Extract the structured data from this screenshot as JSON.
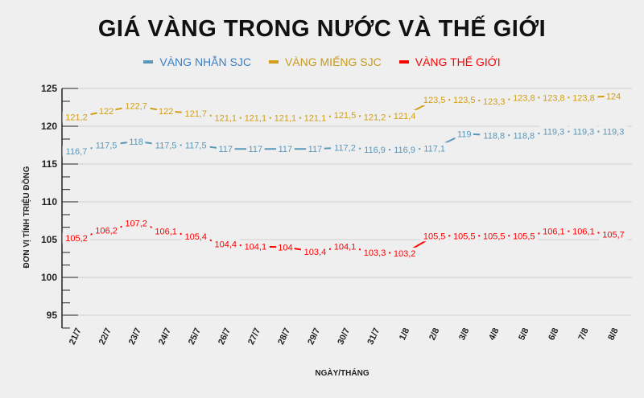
{
  "chart_data": {
    "type": "line",
    "title": "GIÁ VÀNG TRONG NƯỚC VÀ THẾ GIỚI",
    "xlabel": "NGÀY/THÁNG",
    "ylabel": "ĐƠN VỊ TÍNH TRIỆU ĐỒNG",
    "ylim": [
      93.3,
      125
    ],
    "yticks": [
      95,
      100,
      105,
      110,
      115,
      120,
      125
    ],
    "grid": true,
    "legend_position": "top",
    "categories": [
      "21/7",
      "22/7",
      "23/7",
      "24/7",
      "25/7",
      "26/7",
      "27/7",
      "28/7",
      "29/7",
      "30/7",
      "31/7",
      "1/8",
      "2/8",
      "3/8",
      "4/8",
      "5/8",
      "6/8",
      "7/8",
      "8/8"
    ],
    "series": [
      {
        "name": "VÀNG NHẪN SJC",
        "color": "#5b97b8",
        "legend_text_color": "#3b80c6",
        "values": [
          116.7,
          117.5,
          118,
          117.5,
          117.5,
          117,
          117,
          117,
          117,
          117.2,
          116.9,
          116.9,
          117.1,
          119,
          118.8,
          118.8,
          119.3,
          119.3,
          119.3
        ],
        "labels": [
          "116,7",
          "117,5",
          "118",
          "117,5",
          "117,5",
          "117",
          "117",
          "117",
          "117",
          "117,2",
          "116,9",
          "116,9",
          "117,1",
          "119",
          "118,8",
          "118,8",
          "119,3",
          "119,3",
          "119,3"
        ]
      },
      {
        "name": "VÀNG MIẾNG SJC",
        "color": "#d19e14",
        "legend_text_color": "#c79a1a",
        "values": [
          121.2,
          122,
          122.7,
          122,
          121.7,
          121.1,
          121.1,
          121.1,
          121.1,
          121.5,
          121.2,
          121.4,
          123.5,
          123.5,
          123.3,
          123.8,
          123.8,
          123.8,
          124
        ],
        "labels": [
          "121,2",
          "122",
          "122,7",
          "122",
          "121,7",
          "121,1",
          "121,1",
          "121,1",
          "121,1",
          "121,5",
          "121,2",
          "121,4",
          "123,5",
          "123,5",
          "123,3",
          "123,8",
          "123,8",
          "123,8",
          "124"
        ]
      },
      {
        "name": "VÀNG THẾ GIỚI",
        "color": "#ff0000",
        "legend_text_color": "#ff0000",
        "values": [
          105.2,
          106.2,
          107.2,
          106.1,
          105.4,
          104.4,
          104.1,
          104,
          103.4,
          104.1,
          103.3,
          103.2,
          105.5,
          105.5,
          105.5,
          105.5,
          106.1,
          106.1,
          105.7
        ],
        "labels": [
          "105,2",
          "106,2",
          "107,2",
          "106,1",
          "105,4",
          "104,4",
          "104,1",
          "104",
          "103,4",
          "104,1",
          "103,3",
          "103,2",
          "105,5",
          "105,5",
          "105,5",
          "105,5",
          "106,1",
          "106,1",
          "105,7"
        ]
      }
    ]
  }
}
